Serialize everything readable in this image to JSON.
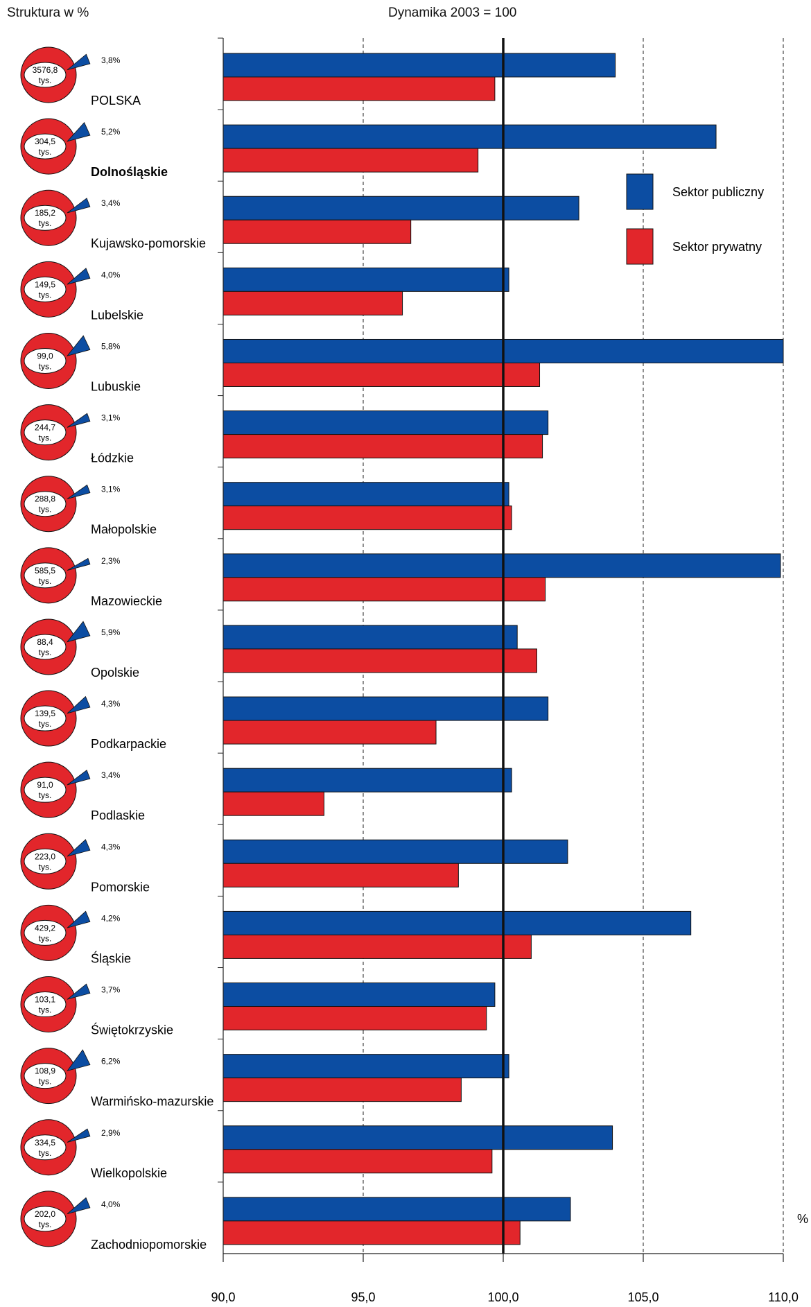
{
  "header": {
    "left_title": "Struktura w %",
    "center_title": "Dynamika 2003 = 100"
  },
  "legend": {
    "items": [
      {
        "label": "Sektor publiczny",
        "color": "#0c4da2"
      },
      {
        "label": "Sektor prywatny",
        "color": "#e2262b"
      }
    ]
  },
  "unit_label": "%",
  "colors": {
    "public": "#0c4da2",
    "private": "#e2262b",
    "pie_private": "#e2262b",
    "pie_public": "#0c4da2"
  },
  "chart_data": {
    "type": "bar",
    "orientation": "horizontal",
    "title": "Dynamika 2003 = 100",
    "xlim": [
      90,
      110
    ],
    "reference_line": 100,
    "x_ticks": [
      "90,0",
      "95,0",
      "100,0",
      "105,0",
      "110,0"
    ],
    "x_tick_values": [
      90,
      95,
      100,
      105,
      110
    ],
    "grid": "dashed vertical at 95 and 105",
    "legend_position": "top-right",
    "categories": [
      "POLSKA",
      "Dolnośląskie",
      "Kujawsko-pomorskie",
      "Lubelskie",
      "Lubuskie",
      "Łódzkie",
      "Małopolskie",
      "Mazowieckie",
      "Opolskie",
      "Podkarpackie",
      "Podlaskie",
      "Pomorskie",
      "Śląskie",
      "Świętokrzyskie",
      "Warmińsko-mazurskie",
      "Wielkopolskie",
      "Zachodniopomorskie"
    ],
    "bold_categories": [
      "Dolnośląskie"
    ],
    "series": [
      {
        "name": "Sektor publiczny",
        "values": [
          104.0,
          107.6,
          102.7,
          100.2,
          110.0,
          101.6,
          100.2,
          109.9,
          100.5,
          101.6,
          100.3,
          102.3,
          106.7,
          99.7,
          100.2,
          103.9,
          102.4
        ]
      },
      {
        "name": "Sektor prywatny",
        "values": [
          99.7,
          99.1,
          96.7,
          96.4,
          101.3,
          101.4,
          100.3,
          101.5,
          101.2,
          97.6,
          93.6,
          98.4,
          101.0,
          99.4,
          98.5,
          99.6,
          100.6
        ]
      }
    ],
    "pies": [
      {
        "total": "3576,8",
        "unit": "tys.",
        "public_share": 3.8,
        "public_label": "3,8%"
      },
      {
        "total": "304,5",
        "unit": "tys.",
        "public_share": 5.2,
        "public_label": "5,2%"
      },
      {
        "total": "185,2",
        "unit": "tys.",
        "public_share": 3.4,
        "public_label": "3,4%"
      },
      {
        "total": "149,5",
        "unit": "tys.",
        "public_share": 4.0,
        "public_label": "4,0%"
      },
      {
        "total": "99,0",
        "unit": "tys.",
        "public_share": 5.8,
        "public_label": "5,8%"
      },
      {
        "total": "244,7",
        "unit": "tys.",
        "public_share": 3.1,
        "public_label": "3,1%"
      },
      {
        "total": "288,8",
        "unit": "tys.",
        "public_share": 3.1,
        "public_label": "3,1%"
      },
      {
        "total": "585,5",
        "unit": "tys.",
        "public_share": 2.3,
        "public_label": "2,3%"
      },
      {
        "total": "88,4",
        "unit": "tys.",
        "public_share": 5.9,
        "public_label": "5,9%"
      },
      {
        "total": "139,5",
        "unit": "tys.",
        "public_share": 4.3,
        "public_label": "4,3%"
      },
      {
        "total": "91,0",
        "unit": "tys.",
        "public_share": 3.4,
        "public_label": "3,4%"
      },
      {
        "total": "223,0",
        "unit": "tys.",
        "public_share": 4.3,
        "public_label": "4,3%"
      },
      {
        "total": "429,2",
        "unit": "tys.",
        "public_share": 4.2,
        "public_label": "4,2%"
      },
      {
        "total": "103,1",
        "unit": "tys.",
        "public_share": 3.7,
        "public_label": "3,7%"
      },
      {
        "total": "108,9",
        "unit": "tys.",
        "public_share": 6.2,
        "public_label": "6,2%"
      },
      {
        "total": "334,5",
        "unit": "tys.",
        "public_share": 2.9,
        "public_label": "2,9%"
      },
      {
        "total": "202,0",
        "unit": "tys.",
        "public_share": 4.0,
        "public_label": "4,0%"
      }
    ]
  }
}
